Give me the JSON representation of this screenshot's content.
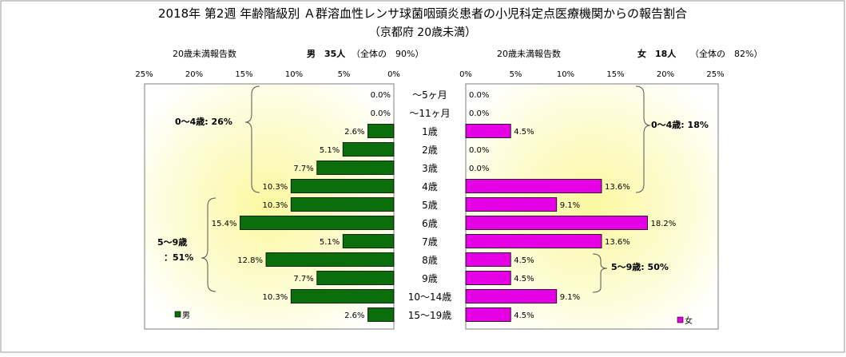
{
  "chart_data": {
    "type": "bar",
    "title": "2018年 第2週 年齢階級別 Ａ群溶血性レンサ球菌咽頭炎患者の小児科定点医療機関からの報告割合",
    "subtitle": "（京都府 20歳未満）",
    "categories": [
      "～5ヶ月",
      "～11ヶ月",
      "1歳",
      "2歳",
      "3歳",
      "4歳",
      "5歳",
      "6歳",
      "7歳",
      "8歳",
      "9歳",
      "10～14歳",
      "15～19歳"
    ],
    "series": [
      {
        "name": "男",
        "color": "#0a6e0a",
        "values": [
          0.0,
          0.0,
          2.6,
          5.1,
          7.7,
          10.3,
          10.3,
          15.4,
          5.1,
          12.8,
          7.7,
          10.3,
          2.6
        ],
        "labels": [
          "0.0%",
          "0.0%",
          "2.6%",
          "5.1%",
          "7.7%",
          "10.3%",
          "10.3%",
          "15.4%",
          "5.1%",
          "12.8%",
          "7.7%",
          "10.3%",
          "2.6%"
        ]
      },
      {
        "name": "女",
        "color": "#e600e6",
        "values": [
          0.0,
          0.0,
          4.5,
          0.0,
          0.0,
          13.6,
          9.1,
          18.2,
          13.6,
          4.5,
          4.5,
          9.1,
          4.5
        ],
        "labels": [
          "0.0%",
          "0.0%",
          "4.5%",
          "0.0%",
          "0.0%",
          "13.6%",
          "9.1%",
          "18.2%",
          "13.6%",
          "4.5%",
          "4.5%",
          "9.1%",
          "4.5%"
        ]
      }
    ],
    "xlim": [
      0,
      25
    ],
    "x_ticks": [
      "0%",
      "5%",
      "10%",
      "15%",
      "20%",
      "25%"
    ],
    "left_panel": {
      "header_label": "20歳未満報告数",
      "header_count": "男　35人",
      "header_share": "（全体の　90%）",
      "legend": "男",
      "annotations": [
        "0～4歳: 26%",
        "5～9歳",
        "：51%"
      ]
    },
    "right_panel": {
      "header_label": "20歳未満報告数",
      "header_count": "女　18人",
      "header_share": "（全体の　82%）",
      "legend": "女",
      "annotations": [
        "0～4歳: 18%",
        "5～9歳: 50%"
      ]
    }
  }
}
